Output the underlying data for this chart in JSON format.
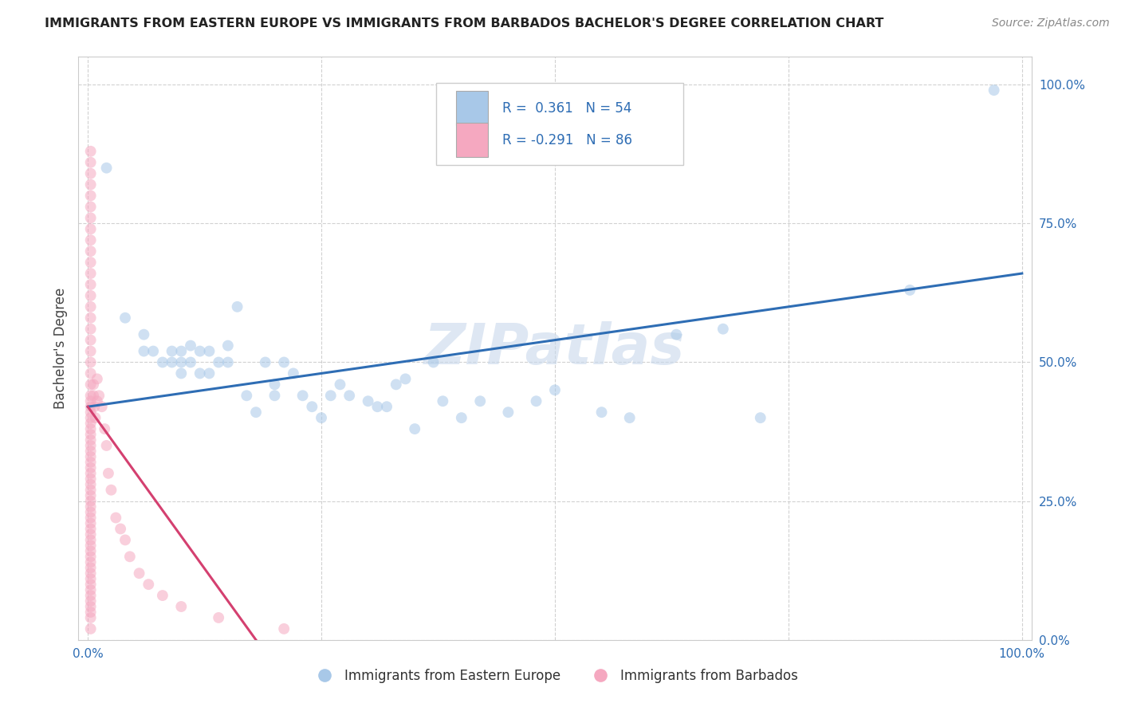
{
  "title": "IMMIGRANTS FROM EASTERN EUROPE VS IMMIGRANTS FROM BARBADOS BACHELOR'S DEGREE CORRELATION CHART",
  "source": "Source: ZipAtlas.com",
  "ylabel": "Bachelor's Degree",
  "watermark": "ZIPatlas",
  "blue_R": 0.361,
  "blue_N": 54,
  "pink_R": -0.291,
  "pink_N": 86,
  "blue_color": "#a8c8e8",
  "pink_color": "#f5a8c0",
  "blue_line_color": "#2e6db4",
  "pink_line_color": "#d44070",
  "legend_text_color": "#2e6db4",
  "title_color": "#222222",
  "blue_scatter_x": [
    0.02,
    0.04,
    0.06,
    0.06,
    0.07,
    0.08,
    0.09,
    0.09,
    0.1,
    0.1,
    0.1,
    0.11,
    0.11,
    0.12,
    0.12,
    0.13,
    0.13,
    0.14,
    0.15,
    0.15,
    0.16,
    0.17,
    0.18,
    0.19,
    0.2,
    0.2,
    0.21,
    0.22,
    0.23,
    0.24,
    0.25,
    0.26,
    0.27,
    0.28,
    0.3,
    0.31,
    0.32,
    0.33,
    0.34,
    0.35,
    0.37,
    0.38,
    0.4,
    0.42,
    0.45,
    0.48,
    0.5,
    0.55,
    0.58,
    0.63,
    0.68,
    0.72,
    0.88,
    0.97
  ],
  "blue_scatter_y": [
    0.85,
    0.58,
    0.52,
    0.55,
    0.52,
    0.5,
    0.52,
    0.5,
    0.52,
    0.5,
    0.48,
    0.53,
    0.5,
    0.52,
    0.48,
    0.52,
    0.48,
    0.5,
    0.53,
    0.5,
    0.6,
    0.44,
    0.41,
    0.5,
    0.46,
    0.44,
    0.5,
    0.48,
    0.44,
    0.42,
    0.4,
    0.44,
    0.46,
    0.44,
    0.43,
    0.42,
    0.42,
    0.46,
    0.47,
    0.38,
    0.5,
    0.43,
    0.4,
    0.43,
    0.41,
    0.43,
    0.45,
    0.41,
    0.4,
    0.55,
    0.56,
    0.4,
    0.63,
    0.99
  ],
  "pink_scatter_x": [
    0.003,
    0.003,
    0.003,
    0.003,
    0.003,
    0.003,
    0.003,
    0.003,
    0.003,
    0.003,
    0.003,
    0.003,
    0.003,
    0.003,
    0.003,
    0.003,
    0.003,
    0.003,
    0.003,
    0.003,
    0.003,
    0.003,
    0.003,
    0.003,
    0.003,
    0.003,
    0.003,
    0.003,
    0.003,
    0.003,
    0.003,
    0.003,
    0.003,
    0.003,
    0.003,
    0.003,
    0.003,
    0.003,
    0.003,
    0.003,
    0.003,
    0.003,
    0.003,
    0.003,
    0.003,
    0.003,
    0.003,
    0.003,
    0.003,
    0.003,
    0.003,
    0.003,
    0.003,
    0.003,
    0.003,
    0.003,
    0.003,
    0.003,
    0.003,
    0.003,
    0.003,
    0.003,
    0.003,
    0.003,
    0.006,
    0.006,
    0.007,
    0.008,
    0.01,
    0.01,
    0.012,
    0.015,
    0.018,
    0.02,
    0.022,
    0.025,
    0.03,
    0.035,
    0.04,
    0.045,
    0.055,
    0.065,
    0.08,
    0.1,
    0.14,
    0.21
  ],
  "pink_scatter_y": [
    0.5,
    0.52,
    0.54,
    0.56,
    0.58,
    0.6,
    0.62,
    0.48,
    0.46,
    0.44,
    0.42,
    0.4,
    0.38,
    0.36,
    0.34,
    0.32,
    0.3,
    0.28,
    0.26,
    0.24,
    0.22,
    0.2,
    0.18,
    0.16,
    0.14,
    0.12,
    0.1,
    0.08,
    0.06,
    0.04,
    0.02,
    0.64,
    0.66,
    0.68,
    0.7,
    0.72,
    0.74,
    0.76,
    0.78,
    0.8,
    0.82,
    0.84,
    0.86,
    0.88,
    0.43,
    0.41,
    0.39,
    0.37,
    0.35,
    0.33,
    0.31,
    0.29,
    0.27,
    0.25,
    0.23,
    0.21,
    0.19,
    0.17,
    0.15,
    0.13,
    0.11,
    0.09,
    0.07,
    0.05,
    0.46,
    0.44,
    0.42,
    0.4,
    0.47,
    0.43,
    0.44,
    0.42,
    0.38,
    0.35,
    0.3,
    0.27,
    0.22,
    0.2,
    0.18,
    0.15,
    0.12,
    0.1,
    0.08,
    0.06,
    0.04,
    0.02
  ],
  "ylim": [
    0.0,
    1.05
  ],
  "xlim": [
    -0.01,
    1.01
  ],
  "yticks": [
    0.0,
    0.25,
    0.5,
    0.75,
    1.0
  ],
  "ytick_labels": [
    "0.0%",
    "25.0%",
    "50.0%",
    "75.0%",
    "100.0%"
  ],
  "xtick_positions": [
    0.0,
    0.25,
    0.5,
    0.75,
    1.0
  ],
  "xtick_labels": [
    "0.0%",
    "",
    "",
    "",
    "100.0%"
  ],
  "grid_color": "#cccccc",
  "background_color": "#ffffff",
  "scatter_size": 100,
  "scatter_alpha": 0.55,
  "legend_label_blue": "Immigrants from Eastern Europe",
  "legend_label_pink": "Immigrants from Barbados",
  "blue_line_x": [
    0.0,
    1.0
  ],
  "blue_line_y_start": 0.42,
  "blue_line_y_end": 0.66,
  "pink_line_x_start": 0.0,
  "pink_line_x_end": 0.18,
  "pink_line_y_start": 0.42,
  "pink_line_y_end": 0.0
}
